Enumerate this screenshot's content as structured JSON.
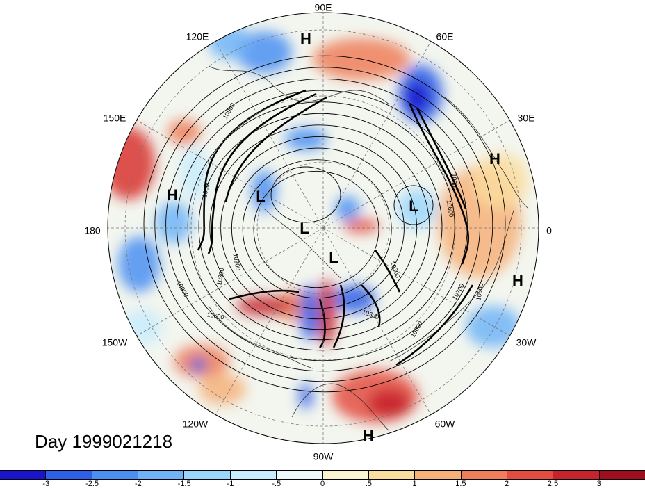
{
  "title": "Day 1999021218",
  "longitude_labels": [
    "90E",
    "60E",
    "30E",
    "0",
    "30W",
    "60W",
    "90W",
    "120W",
    "150W",
    "180",
    "150E",
    "120E"
  ],
  "pressure_centers": [
    {
      "label": "H"
    },
    {
      "label": "H"
    },
    {
      "label": "H"
    },
    {
      "label": "H"
    },
    {
      "label": "H"
    },
    {
      "label": "L"
    },
    {
      "label": "L"
    },
    {
      "label": "L"
    },
    {
      "label": "L"
    }
  ],
  "contour_labels": [
    "10900",
    "10800",
    "10300",
    "10600",
    "10900",
    "10300",
    "10500",
    "10600",
    "10700",
    "10900",
    "10600",
    "10600",
    "10300"
  ],
  "colorbar": {
    "colors": [
      "#1a14cc",
      "#2e5fe8",
      "#4b8ff2",
      "#70b4f7",
      "#9ad6fb",
      "#c8ecfd",
      "#eef8fc",
      "#fcf3d2",
      "#fadc9e",
      "#f6b07a",
      "#ef7e5a",
      "#e44c3f",
      "#c6232e",
      "#9e0e1e"
    ],
    "tick_labels": [
      "-3",
      "-2.5",
      "-2",
      "-1.5",
      "-1",
      "-.5",
      "0",
      ".5",
      "1",
      "1.5",
      "2",
      "2.5",
      "3"
    ]
  }
}
